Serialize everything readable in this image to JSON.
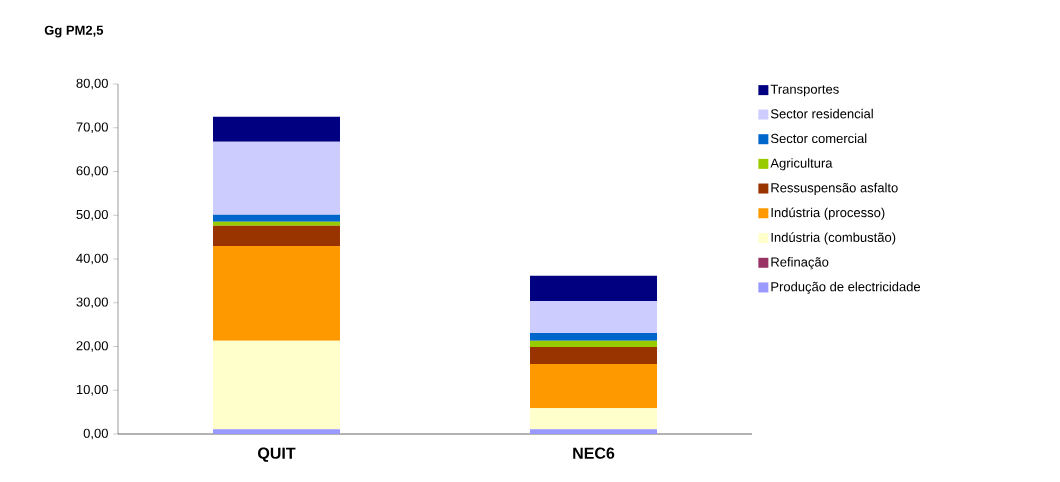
{
  "chart_data": {
    "type": "bar",
    "stacked": true,
    "ylabel": "Gg PM2,5",
    "categories": [
      "QUIT",
      "NEC6"
    ],
    "series": [
      {
        "name": "Produção de electricidade",
        "color": "#9999ff",
        "values": [
          1.1,
          1.1
        ]
      },
      {
        "name": "Refinação",
        "color": "#993366",
        "values": [
          null,
          null
        ]
      },
      {
        "name": "Indústria (combustão)",
        "color": "#ffffcc",
        "values": [
          20.2,
          4.8
        ]
      },
      {
        "name": "Indústria (processo)",
        "color": "#ff9900",
        "values": [
          21.7,
          10.1
        ]
      },
      {
        "name": "Ressuspensão asfalto",
        "color": "#993300",
        "values": [
          4.6,
          3.9
        ]
      },
      {
        "name": "Agricultura",
        "color": "#99cc00",
        "values": [
          0.9,
          1.4
        ]
      },
      {
        "name": "Sector comercial",
        "color": "#0066cc",
        "values": [
          1.6,
          1.8
        ]
      },
      {
        "name": "Sector residencial",
        "color": "#ccccff",
        "values": [
          16.7,
          7.3
        ]
      },
      {
        "name": "Transportes",
        "color": "#000080",
        "values": [
          5.7,
          5.8
        ]
      }
    ],
    "ylim": [
      0,
      80
    ],
    "yticks": [
      {
        "value": 0,
        "label": "0,00"
      },
      {
        "value": 10,
        "label": "10,00"
      },
      {
        "value": 20,
        "label": "20,00"
      },
      {
        "value": 30,
        "label": "30,00"
      },
      {
        "value": 40,
        "label": "40,00"
      },
      {
        "value": 50,
        "label": "50,00"
      },
      {
        "value": 60,
        "label": "60,00"
      },
      {
        "value": 70,
        "label": "70,00"
      },
      {
        "value": 80,
        "label": "80,00"
      }
    ],
    "legend": "right",
    "grid": false
  }
}
